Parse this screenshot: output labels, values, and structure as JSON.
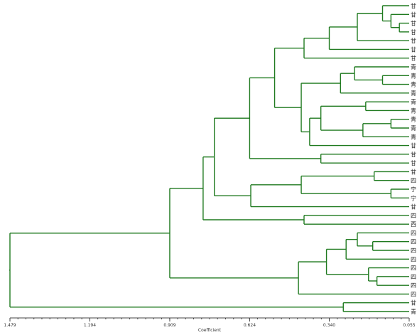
{
  "dendrogram": {
    "axis": {
      "title": "Coefficient",
      "min": 0.055,
      "max": 1.479,
      "ticks": [
        {
          "value": 1.479,
          "label": "1.479"
        },
        {
          "value": 1.194,
          "label": "1.194"
        },
        {
          "value": 0.909,
          "label": "0.909"
        },
        {
          "value": 0.624,
          "label": "0.624"
        },
        {
          "value": 0.34,
          "label": "0.340"
        },
        {
          "value": 0.055,
          "label": "0.055"
        }
      ]
    },
    "colors": {
      "branch": "#1f7a1f",
      "axis": "#444444"
    },
    "leaves": [
      "甘",
      "甘",
      "甘",
      "甘",
      "甘",
      "甘",
      "甘",
      "青",
      "青",
      "青",
      "青",
      "青",
      "青",
      "青",
      "青",
      "青",
      "甘",
      "甘",
      "甘",
      "甘",
      "四",
      "宁",
      "宁",
      "甘",
      "四",
      "西",
      "四",
      "四",
      "四",
      "四",
      "四",
      "四",
      "四",
      "四",
      "甘",
      "青"
    ],
    "tree": {
      "h": 1.479,
      "children": [
        {
          "h": 0.909,
          "children": [
            {
              "h": 0.79,
              "children": [
                {
                  "h": 0.75,
                  "children": [
                    {
                      "h": 0.624,
                      "children": [
                        {
                          "h": 0.535,
                          "children": [
                            {
                              "h": 0.43,
                              "children": [
                                {
                                  "h": 0.34,
                                  "children": [
                                    {
                                      "h": 0.24,
                                      "children": [
                                        {
                                          "h": 0.15,
                                          "children": [
                                            {
                                              "leaf": 0
                                            },
                                            {
                                              "h": 0.12,
                                              "children": [
                                                {
                                                  "leaf": 1
                                                },
                                                {
                                                  "h": 0.09,
                                                  "children": [
                                                    {
                                                      "leaf": 2
                                                    },
                                                    {
                                                      "leaf": 3
                                                    }
                                                  ]
                                                }
                                              ]
                                            }
                                          ]
                                        },
                                        {
                                          "leaf": 4
                                        }
                                      ]
                                    },
                                    {
                                      "leaf": 5
                                    }
                                  ]
                                },
                                {
                                  "leaf": 6
                                }
                              ]
                            },
                            {
                              "h": 0.44,
                              "children": [
                                {
                                  "h": 0.3,
                                  "children": [
                                    {
                                      "h": 0.25,
                                      "children": [
                                        {
                                          "leaf": 7
                                        },
                                        {
                                          "h": 0.15,
                                          "children": [
                                            {
                                              "leaf": 8
                                            },
                                            {
                                              "leaf": 9
                                            }
                                          ]
                                        }
                                      ]
                                    },
                                    {
                                      "leaf": 10
                                    }
                                  ]
                                },
                                {
                                  "h": 0.41,
                                  "children": [
                                    {
                                      "h": 0.37,
                                      "children": [
                                        {
                                          "h": 0.21,
                                          "children": [
                                            {
                                              "leaf": 11
                                            },
                                            {
                                              "leaf": 12
                                            }
                                          ]
                                        },
                                        {
                                          "h": 0.22,
                                          "children": [
                                            {
                                              "h": 0.12,
                                              "children": [
                                                {
                                                  "leaf": 13
                                                },
                                                {
                                                  "leaf": 14
                                                }
                                              ]
                                            },
                                            {
                                              "leaf": 15
                                            }
                                          ]
                                        }
                                      ]
                                    },
                                    {
                                      "leaf": 16
                                    }
                                  ]
                                }
                              ]
                            }
                          ]
                        },
                        {
                          "h": 0.37,
                          "children": [
                            {
                              "leaf": 17
                            },
                            {
                              "leaf": 18
                            }
                          ]
                        }
                      ]
                    },
                    {
                      "h": 0.62,
                      "children": [
                        {
                          "h": 0.44,
                          "children": [
                            {
                              "h": 0.18,
                              "children": [
                                {
                                  "leaf": 19
                                },
                                {
                                  "leaf": 20
                                }
                              ]
                            },
                            {
                              "h": 0.12,
                              "children": [
                                {
                                  "leaf": 21
                                },
                                {
                                  "leaf": 22
                                }
                              ]
                            }
                          ]
                        },
                        {
                          "leaf": 23
                        }
                      ]
                    }
                  ]
                },
                {
                  "h": 0.43,
                  "children": [
                    {
                      "leaf": 24
                    },
                    {
                      "leaf": 25
                    }
                  ]
                }
              ]
            },
            {
              "h": 0.45,
              "children": [
                {
                  "h": 0.35,
                  "children": [
                    {
                      "h": 0.28,
                      "children": [
                        {
                          "h": 0.24,
                          "children": [
                            {
                              "leaf": 26
                            },
                            {
                              "h": 0.185,
                              "children": [
                                {
                                  "leaf": 27
                                },
                                {
                                  "leaf": 28
                                }
                              ]
                            }
                          ]
                        },
                        {
                          "leaf": 29
                        }
                      ]
                    },
                    {
                      "h": 0.2,
                      "children": [
                        {
                          "leaf": 30
                        },
                        {
                          "h": 0.17,
                          "children": [
                            {
                              "leaf": 31
                            },
                            {
                              "leaf": 32
                            }
                          ]
                        }
                      ]
                    }
                  ]
                },
                {
                  "leaf": 33
                }
              ]
            }
          ]
        },
        {
          "h": 0.29,
          "children": [
            {
              "leaf": 34
            },
            {
              "leaf": 35
            }
          ]
        }
      ]
    }
  }
}
